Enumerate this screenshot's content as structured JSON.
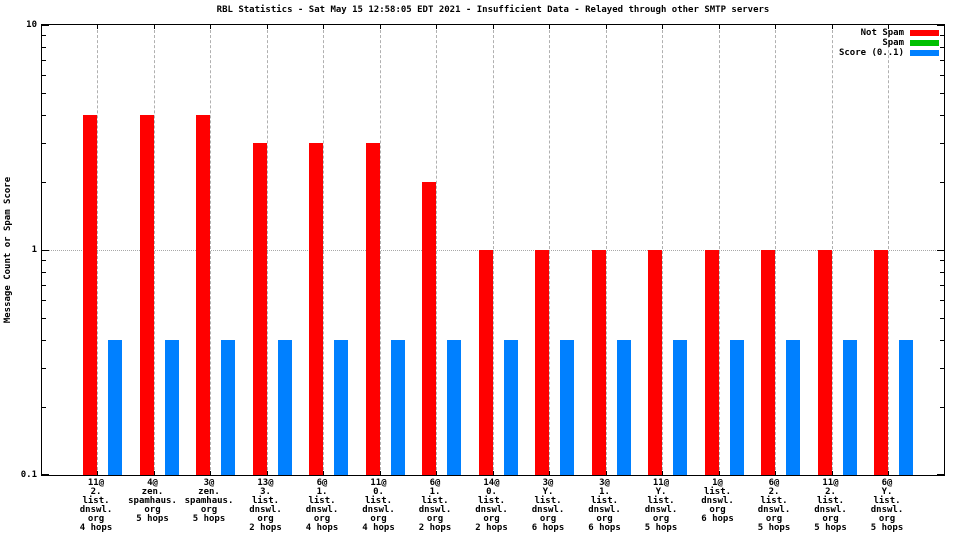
{
  "chart_data": {
    "type": "bar",
    "yscale": "log",
    "title": "RBL Statistics - Sat May 15 12:58:05 EDT 2021 - Insufficient Data - Relayed through other SMTP servers",
    "ylabel": "Message Count or Spam Score",
    "ylim": [
      0.1,
      10
    ],
    "ytick_values": [
      10,
      1,
      0.1
    ],
    "ytick_labels": [
      "10",
      "1",
      "0.1"
    ],
    "grid": true,
    "legend_position": "top-right-inside",
    "categories": [
      "11@\n2.\nlist.\ndnswl.\norg\n4 hops",
      "4@\nzen.\nspamhaus.\norg\n5 hops",
      "3@\nzen.\nspamhaus.\norg\n5 hops",
      "13@\n3.\nlist.\ndnswl.\norg\n2 hops",
      "6@\n1.\nlist.\ndnswl.\norg\n4 hops",
      "11@\n0.\nlist.\ndnswl.\norg\n4 hops",
      "6@\n1.\nlist.\ndnswl.\norg\n2 hops",
      "14@\n0.\nlist.\ndnswl.\norg\n2 hops",
      "3@\nY.\nlist.\ndnswl.\norg\n6 hops",
      "3@\n1.\nlist.\ndnswl.\norg\n6 hops",
      "11@\nY.\nlist.\ndnswl.\norg\n5 hops",
      "1@\nlist.\ndnswl.\norg\n6 hops",
      "6@\n2.\nlist.\ndnswl.\norg\n5 hops",
      "11@\n2.\nlist.\ndnswl.\norg\n5 hops",
      "6@\nY.\nlist.\ndnswl.\norg\n5 hops"
    ],
    "series": [
      {
        "name": "Not Spam",
        "color": "#ff0000",
        "values": [
          4,
          4,
          4,
          3,
          3,
          3,
          2,
          1,
          1,
          1,
          1,
          1,
          1,
          1,
          1
        ]
      },
      {
        "name": "Spam",
        "color": "#00c000",
        "values": [
          0,
          0,
          0,
          0,
          0,
          0,
          0,
          0,
          0,
          0,
          0,
          0,
          0,
          0,
          0
        ]
      },
      {
        "name": "Score (0..1)",
        "color": "#0080ff",
        "values": [
          0.4,
          0.4,
          0.4,
          0.4,
          0.4,
          0.4,
          0.4,
          0.4,
          0.4,
          0.4,
          0.4,
          0.4,
          0.4,
          0.4,
          0.4
        ]
      }
    ]
  },
  "colors": {
    "axis": "#000000",
    "grid_dashed": "#b0b0b0",
    "grid_dotted": "#a8a8a8",
    "background": "#ffffff"
  }
}
